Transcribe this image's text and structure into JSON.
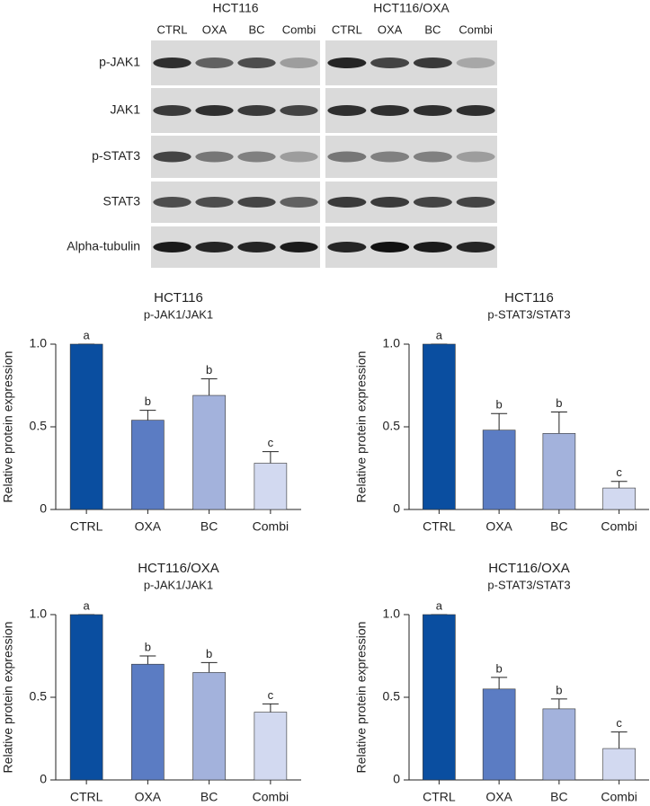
{
  "blot": {
    "groups": [
      "HCT116",
      "HCT116/OXA"
    ],
    "lanes": [
      "CTRL",
      "OXA",
      "BC",
      "Combi"
    ],
    "rows": [
      "p-JAK1",
      "JAK1",
      "p-STAT3",
      "STAT3",
      "Alpha-tubulin"
    ]
  },
  "chart_data": [
    {
      "type": "bar",
      "title": "HCT116",
      "subtitle": "p-JAK1/JAK1",
      "y_label": "Relative protein expression",
      "categories": [
        "CTRL",
        "OXA",
        "BC",
        "Combi"
      ],
      "values": [
        1.0,
        0.54,
        0.69,
        0.28
      ],
      "errors": [
        0,
        0.06,
        0.1,
        0.07
      ],
      "annotations": [
        "a",
        "b",
        "b",
        "c"
      ],
      "colors": [
        "#0a4ea0",
        "#5b7cc3",
        "#a3b2dc",
        "#d2d9f0"
      ],
      "ylim": [
        0,
        1
      ],
      "yticks": [
        0,
        0.5,
        {
          "value": 1,
          "label": "1.0"
        }
      ]
    },
    {
      "type": "bar",
      "title": "HCT116",
      "subtitle": "p-STAT3/STAT3",
      "y_label": "Relative protein expression",
      "categories": [
        "CTRL",
        "OXA",
        "BC",
        "Combi"
      ],
      "values": [
        1.0,
        0.48,
        0.46,
        0.13
      ],
      "errors": [
        0,
        0.1,
        0.13,
        0.04
      ],
      "annotations": [
        "a",
        "b",
        "b",
        "c"
      ],
      "colors": [
        "#0a4ea0",
        "#5b7cc3",
        "#a3b2dc",
        "#d2d9f0"
      ],
      "ylim": [
        0,
        1
      ],
      "yticks": [
        0,
        0.5,
        {
          "value": 1,
          "label": "1.0"
        }
      ]
    },
    {
      "type": "bar",
      "title": "HCT116/OXA",
      "subtitle": "p-JAK1/JAK1",
      "y_label": "Relative protein expression",
      "categories": [
        "CTRL",
        "OXA",
        "BC",
        "Combi"
      ],
      "values": [
        1.0,
        0.7,
        0.65,
        0.41
      ],
      "errors": [
        0,
        0.05,
        0.06,
        0.05
      ],
      "annotations": [
        "a",
        "b",
        "b",
        "c"
      ],
      "colors": [
        "#0a4ea0",
        "#5b7cc3",
        "#a3b2dc",
        "#d2d9f0"
      ],
      "ylim": [
        0,
        1
      ],
      "yticks": [
        0,
        0.5,
        {
          "value": 1,
          "label": "1.0"
        }
      ]
    },
    {
      "type": "bar",
      "title": "HCT116/OXA",
      "subtitle": "p-STAT3/STAT3",
      "y_label": "Relative protein expression",
      "categories": [
        "CTRL",
        "OXA",
        "BC",
        "Combi"
      ],
      "values": [
        1.0,
        0.55,
        0.43,
        0.19
      ],
      "errors": [
        0,
        0.07,
        0.06,
        0.1
      ],
      "annotations": [
        "a",
        "b",
        "b",
        "c"
      ],
      "colors": [
        "#0a4ea0",
        "#5b7cc3",
        "#a3b2dc",
        "#d2d9f0"
      ],
      "ylim": [
        0,
        1
      ],
      "yticks": [
        0,
        0.5,
        {
          "value": 1,
          "label": "1.0"
        }
      ]
    }
  ]
}
